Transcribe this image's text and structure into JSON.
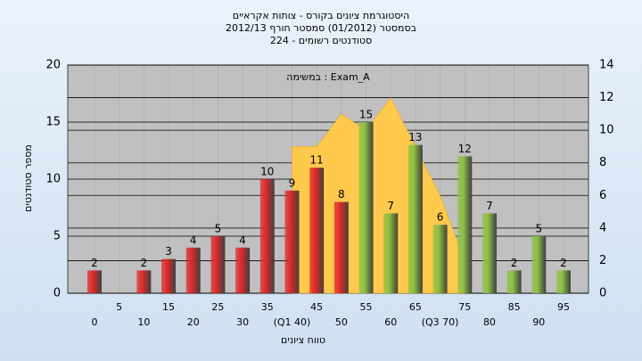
{
  "chart_data": {
    "type": "bar",
    "title": "היסטוגרמת ציונים בקורס - צותות אקראיים",
    "subtitle": "בסמסטר (01/2012) סמסטר חורף 2012/13",
    "subtitle2": "סטודנטים רשומים - 224",
    "annotation": "במשימה : Exam_A",
    "ylabel": "מספר סטודנטים",
    "xlabel": "טווח ציונים",
    "categories": [
      "0",
      "5",
      "10",
      "15",
      "20",
      "25",
      "30",
      "35",
      "(Q1 40)",
      "45",
      "50",
      "55",
      "60",
      "65",
      "(Q3 70)",
      "75",
      "80",
      "85",
      "90",
      "95"
    ],
    "values": [
      2,
      0,
      2,
      3,
      4,
      5,
      4,
      10,
      9,
      11,
      8,
      15,
      7,
      13,
      6,
      12,
      7,
      2,
      5,
      2
    ],
    "colors": [
      "#e02828",
      "#e02828",
      "#e02828",
      "#e02828",
      "#e02828",
      "#e02828",
      "#e02828",
      "#e02828",
      "#e02828",
      "#e02828",
      "#e02828",
      "#8cc043",
      "#8cc043",
      "#8cc043",
      "#8cc043",
      "#8cc043",
      "#8cc043",
      "#8cc043",
      "#8cc043",
      "#8cc043"
    ],
    "area": {
      "axis": "y2",
      "color": "#ffc94d",
      "values": [
        null,
        null,
        null,
        null,
        null,
        null,
        null,
        null,
        9,
        9,
        11,
        10,
        12,
        9,
        6,
        2,
        null,
        null,
        null,
        null
      ]
    },
    "ylim": [
      0,
      20
    ],
    "yticks": [
      0,
      5,
      10,
      15,
      20
    ],
    "y2lim": [
      0,
      14
    ],
    "y2ticks": [
      0,
      2,
      4,
      6,
      8,
      10,
      12,
      14
    ],
    "grid": true
  }
}
